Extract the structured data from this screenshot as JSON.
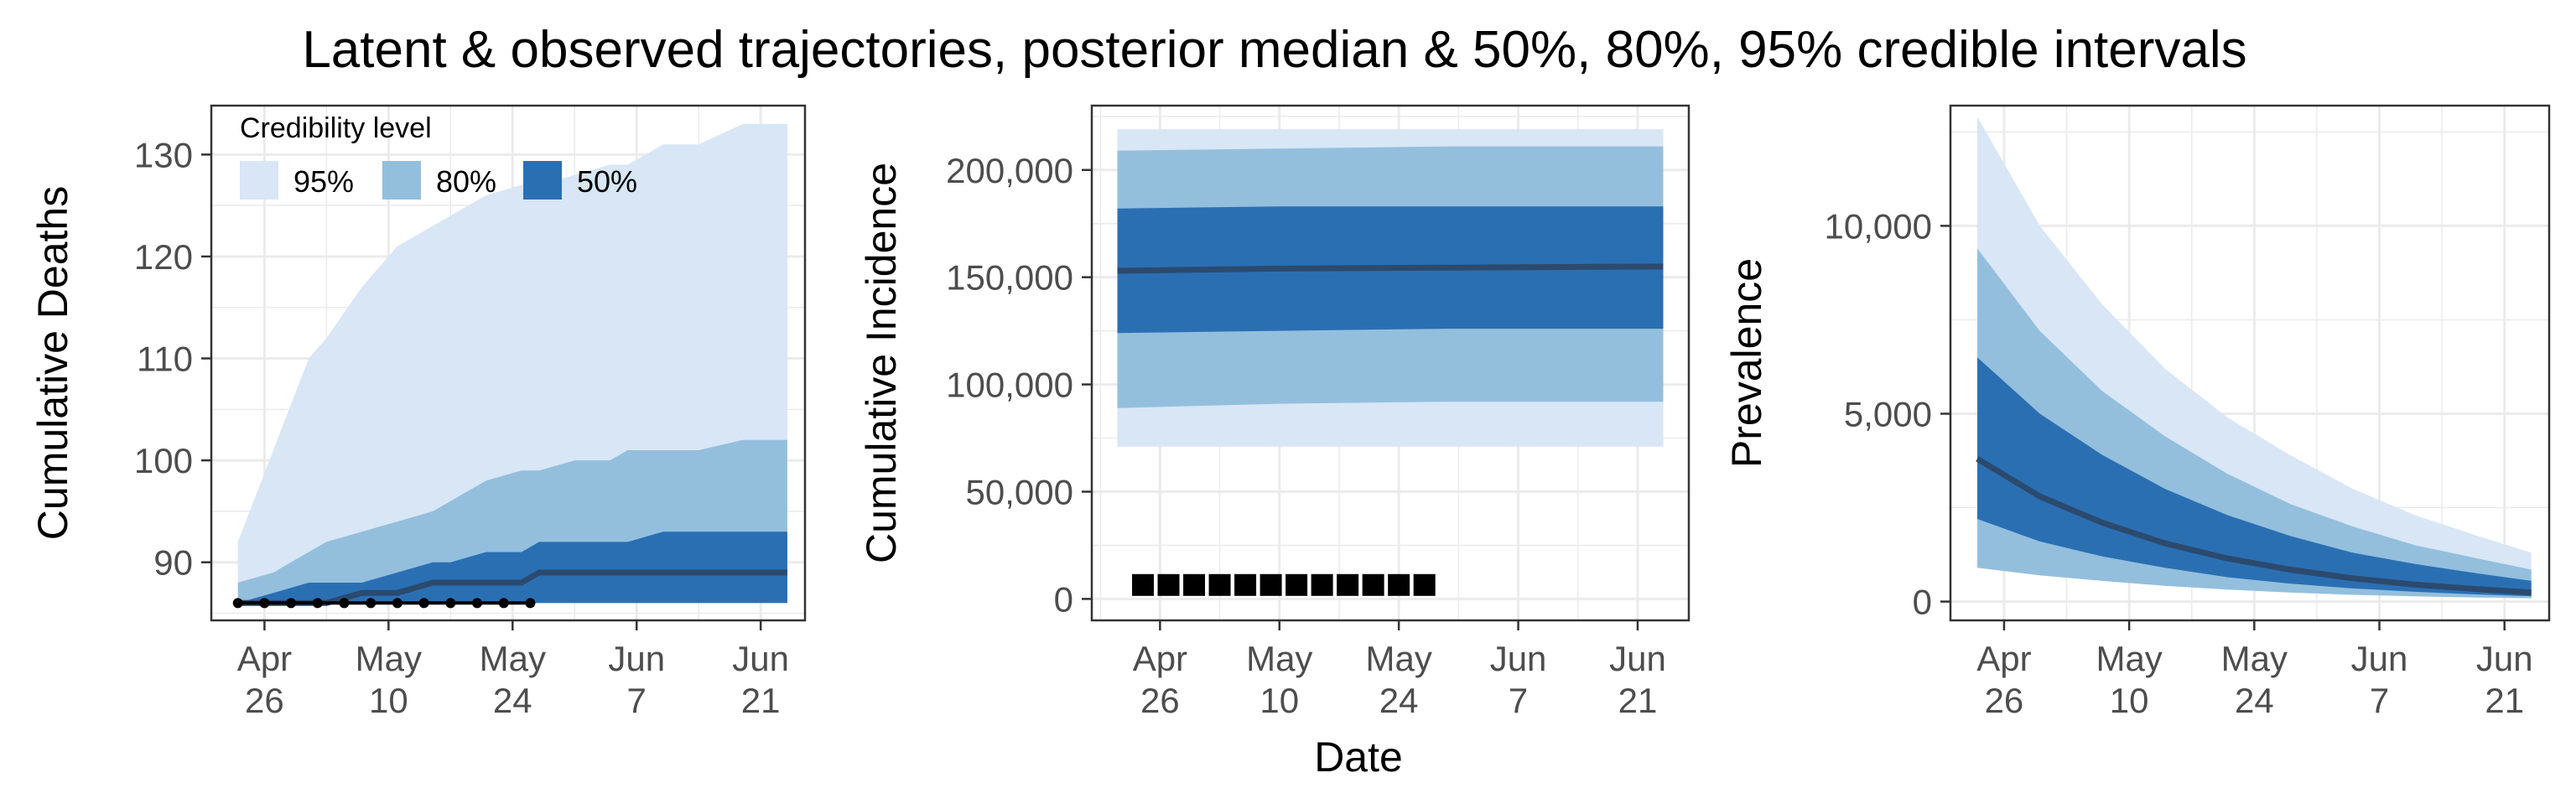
{
  "title": "Latent & observed trajectories, posterior median & 50%, 80%, 95% credible intervals",
  "colors": {
    "band95": "#d8e6f5",
    "band80": "#93bfdd",
    "band50": "#2b6fb3",
    "median": "#2b4a6e",
    "observed": "#000000",
    "grid": "#ebebeb",
    "panel_border": "#333333"
  },
  "legend": {
    "title": "Credibility level",
    "items": [
      {
        "label": "95%",
        "key": "band95"
      },
      {
        "label": "80%",
        "key": "band80"
      },
      {
        "label": "50%",
        "key": "band50"
      }
    ],
    "position": "top-left inside first panel"
  },
  "shared_xlabel": "Date",
  "chart_data": [
    {
      "type": "area",
      "ylabel": "Cumulative Deaths",
      "xlabel": "",
      "x_unit": "date",
      "xlim": [
        "2020-04-20",
        "2020-06-26"
      ],
      "ylim": [
        84.3,
        134.8
      ],
      "x_ticks": [
        {
          "date": "2020-04-26",
          "month": "Apr",
          "day": "26"
        },
        {
          "date": "2020-05-10",
          "month": "May",
          "day": "10"
        },
        {
          "date": "2020-05-24",
          "month": "May",
          "day": "24"
        },
        {
          "date": "2020-06-07",
          "month": "Jun",
          "day": "7"
        },
        {
          "date": "2020-06-21",
          "month": "Jun",
          "day": "21"
        }
      ],
      "y_ticks": [
        {
          "value": 90,
          "label": "90"
        },
        {
          "value": 100,
          "label": "100"
        },
        {
          "value": 110,
          "label": "110"
        },
        {
          "value": 120,
          "label": "120"
        },
        {
          "value": 130,
          "label": "130"
        }
      ],
      "x": [
        "2020-04-23",
        "2020-04-27",
        "2020-05-01",
        "2020-05-03",
        "2020-05-07",
        "2020-05-11",
        "2020-05-15",
        "2020-05-17",
        "2020-05-21",
        "2020-05-25",
        "2020-05-27",
        "2020-05-31",
        "2020-06-04",
        "2020-06-06",
        "2020-06-10",
        "2020-06-14",
        "2020-06-19",
        "2020-06-24"
      ],
      "bands": {
        "band95": {
          "lower": [
            86,
            86,
            86,
            86,
            86,
            86,
            86,
            86,
            86,
            86,
            86,
            86,
            86,
            86,
            86,
            86,
            86,
            86
          ],
          "upper": [
            92,
            101,
            110,
            112,
            117,
            121,
            123,
            124,
            126,
            127,
            127,
            128,
            129,
            129,
            131,
            131,
            133,
            133
          ]
        },
        "band80": {
          "lower": [
            86,
            86,
            86,
            86,
            86,
            86,
            86,
            86,
            86,
            86,
            86,
            86,
            86,
            86,
            86,
            86,
            86,
            86
          ],
          "upper": [
            88,
            89,
            91,
            92,
            93,
            94,
            95,
            96,
            98,
            99,
            99,
            100,
            100,
            101,
            101,
            101,
            102,
            102
          ]
        },
        "band50": {
          "lower": [
            86,
            86,
            86,
            86,
            86,
            86,
            86,
            86,
            86,
            86,
            86,
            86,
            86,
            86,
            86,
            86,
            86,
            86
          ],
          "upper": [
            86,
            87,
            88,
            88,
            88,
            89,
            90,
            90,
            91,
            91,
            92,
            92,
            92,
            92,
            93,
            93,
            93,
            93
          ]
        }
      },
      "median": [
        86,
        86,
        86,
        86,
        87,
        87,
        88,
        88,
        88,
        88,
        89,
        89,
        89,
        89,
        89,
        89,
        89,
        89
      ],
      "observed": {
        "x": [
          "2020-04-23",
          "2020-04-26",
          "2020-04-29",
          "2020-05-02",
          "2020-05-05",
          "2020-05-08",
          "2020-05-11",
          "2020-05-14",
          "2020-05-17",
          "2020-05-20",
          "2020-05-23",
          "2020-05-26"
        ],
        "y": [
          86,
          86,
          86,
          86,
          86,
          86,
          86,
          86,
          86,
          86,
          86,
          86
        ]
      }
    },
    {
      "type": "area",
      "ylabel": "Cumulative Incidence",
      "xlabel": "Date",
      "x_unit": "date",
      "xlim": [
        "2020-04-18",
        "2020-06-27"
      ],
      "ylim": [
        -10000,
        230000
      ],
      "x_ticks": [
        {
          "date": "2020-04-26",
          "month": "Apr",
          "day": "26"
        },
        {
          "date": "2020-05-10",
          "month": "May",
          "day": "10"
        },
        {
          "date": "2020-05-24",
          "month": "May",
          "day": "24"
        },
        {
          "date": "2020-06-07",
          "month": "Jun",
          "day": "7"
        },
        {
          "date": "2020-06-21",
          "month": "Jun",
          "day": "21"
        }
      ],
      "y_ticks": [
        {
          "value": 0,
          "label": "0"
        },
        {
          "value": 50000,
          "label": "50,000"
        },
        {
          "value": 100000,
          "label": "100,000"
        },
        {
          "value": 150000,
          "label": "150,000"
        },
        {
          "value": 200000,
          "label": "200,000"
        }
      ],
      "x": [
        "2020-04-21",
        "2020-05-10",
        "2020-05-30",
        "2020-06-24"
      ],
      "bands": {
        "band95": {
          "lower": [
            71000,
            71000,
            71000,
            71000
          ],
          "upper": [
            219000,
            219000,
            219000,
            219000
          ]
        },
        "band80": {
          "lower": [
            89000,
            91000,
            92000,
            92000
          ],
          "upper": [
            209000,
            210000,
            211000,
            211000
          ]
        },
        "band50": {
          "lower": [
            124000,
            125000,
            126000,
            126000
          ],
          "upper": [
            182000,
            183000,
            183000,
            183000
          ]
        }
      },
      "median": [
        153000,
        154000,
        154500,
        155000
      ],
      "observed": {
        "marker": "square",
        "x": [
          "2020-04-24",
          "2020-04-27",
          "2020-04-30",
          "2020-05-03",
          "2020-05-06",
          "2020-05-09",
          "2020-05-12",
          "2020-05-15",
          "2020-05-18",
          "2020-05-21",
          "2020-05-24",
          "2020-05-27"
        ],
        "y": [
          6500,
          6500,
          6500,
          6500,
          6500,
          6500,
          6500,
          6500,
          6500,
          6500,
          6500,
          6500
        ]
      }
    },
    {
      "type": "area",
      "ylabel": "Prevalence",
      "xlabel": "",
      "x_unit": "date",
      "xlim": [
        "2020-04-20",
        "2020-06-26"
      ],
      "ylim": [
        -500,
        13200
      ],
      "x_ticks": [
        {
          "date": "2020-04-26",
          "month": "Apr",
          "day": "26"
        },
        {
          "date": "2020-05-10",
          "month": "May",
          "day": "10"
        },
        {
          "date": "2020-05-24",
          "month": "May",
          "day": "24"
        },
        {
          "date": "2020-06-07",
          "month": "Jun",
          "day": "7"
        },
        {
          "date": "2020-06-21",
          "month": "Jun",
          "day": "21"
        }
      ],
      "y_ticks": [
        {
          "value": 0,
          "label": "0"
        },
        {
          "value": 5000,
          "label": "5,000"
        },
        {
          "value": 10000,
          "label": "10,000"
        }
      ],
      "x": [
        "2020-04-23",
        "2020-04-30",
        "2020-05-07",
        "2020-05-14",
        "2020-05-21",
        "2020-05-28",
        "2020-06-04",
        "2020-06-11",
        "2020-06-18",
        "2020-06-24"
      ],
      "bands": {
        "band95": {
          "lower": [
            900,
            700,
            550,
            420,
            320,
            240,
            180,
            140,
            110,
            90
          ],
          "upper": [
            12900,
            10000,
            7900,
            6200,
            4900,
            3900,
            3000,
            2300,
            1750,
            1300
          ]
        },
        "band80": {
          "lower": [
            900,
            700,
            550,
            420,
            320,
            240,
            180,
            140,
            110,
            90
          ],
          "upper": [
            9400,
            7200,
            5600,
            4400,
            3400,
            2600,
            2000,
            1500,
            1150,
            850
          ]
        },
        "band50": {
          "lower": [
            2200,
            1600,
            1200,
            900,
            650,
            480,
            350,
            260,
            190,
            140
          ],
          "upper": [
            6500,
            5000,
            3900,
            3000,
            2300,
            1750,
            1300,
            1000,
            750,
            550
          ]
        }
      },
      "median": [
        3800,
        2800,
        2100,
        1550,
        1150,
        850,
        620,
        450,
        330,
        240
      ]
    }
  ]
}
